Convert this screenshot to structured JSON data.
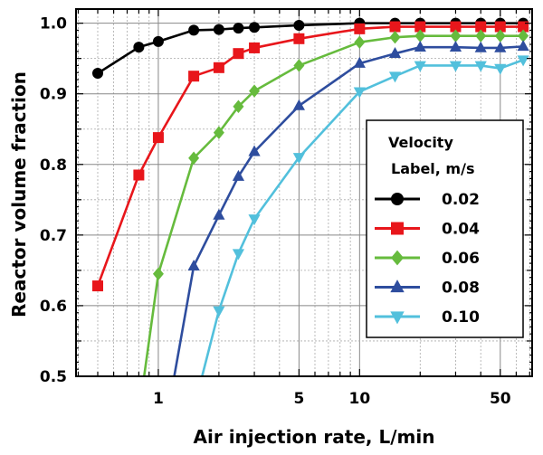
{
  "chart_data": {
    "type": "line",
    "xlabel": "Air injection rate, L/min",
    "ylabel": "Reactor volume fraction",
    "xscale": "log",
    "xlim": [
      0.39,
      72
    ],
    "ylim": [
      0.5,
      1.02
    ],
    "xticks": [
      {
        "value": 1,
        "label": "1"
      },
      {
        "value": 5,
        "label": "5"
      },
      {
        "value": 10,
        "label": "10"
      },
      {
        "value": 50,
        "label": "50"
      }
    ],
    "yticks": [
      {
        "value": 0.5,
        "label": "0.5"
      },
      {
        "value": 0.6,
        "label": "0.6"
      },
      {
        "value": 0.7,
        "label": "0.7"
      },
      {
        "value": 0.8,
        "label": "0.8"
      },
      {
        "value": 0.9,
        "label": "0.9"
      },
      {
        "value": 1.0,
        "label": "1.0"
      }
    ],
    "grid": true,
    "legend": {
      "title": "Velocity",
      "subtitle": "Label, m/s",
      "placement": "center-right"
    },
    "series": [
      {
        "name": "0.02",
        "color": "#000000",
        "marker": "circle",
        "x": [
          0.5,
          0.8,
          1.0,
          1.5,
          2.0,
          2.5,
          3.0,
          5.0,
          10.0,
          15.0,
          20.0,
          30.0,
          40.0,
          50.0,
          65.0
        ],
        "y": [
          0.929,
          0.966,
          0.974,
          0.99,
          0.991,
          0.993,
          0.994,
          0.997,
          1.0,
          1.0,
          1.0,
          1.0,
          1.0,
          1.0,
          1.0
        ]
      },
      {
        "name": "0.04",
        "color": "#e8161b",
        "marker": "square",
        "x": [
          0.5,
          0.8,
          1.0,
          1.5,
          2.0,
          2.5,
          3.0,
          5.0,
          10.0,
          15.0,
          20.0,
          30.0,
          40.0,
          50.0,
          65.0
        ],
        "y": [
          0.628,
          0.785,
          0.838,
          0.925,
          0.937,
          0.957,
          0.965,
          0.978,
          0.992,
          0.995,
          0.995,
          0.995,
          0.995,
          0.995,
          0.995
        ]
      },
      {
        "name": "0.06",
        "color": "#66bb3d",
        "marker": "diamond",
        "x": [
          0.85,
          1.0,
          1.5,
          2.0,
          2.5,
          3.0,
          5.0,
          10.0,
          15.0,
          20.0,
          30.0,
          40.0,
          50.0,
          65.0
        ],
        "y": [
          0.5,
          0.645,
          0.809,
          0.845,
          0.882,
          0.904,
          0.94,
          0.973,
          0.98,
          0.982,
          0.982,
          0.982,
          0.982,
          0.982
        ]
      },
      {
        "name": "0.08",
        "color": "#2e4d9e",
        "marker": "triangle-up",
        "x": [
          1.2,
          1.5,
          2.0,
          2.5,
          3.0,
          5.0,
          10.0,
          15.0,
          20.0,
          30.0,
          40.0,
          50.0,
          65.0
        ],
        "y": [
          0.5,
          0.656,
          0.728,
          0.783,
          0.818,
          0.883,
          0.943,
          0.957,
          0.966,
          0.966,
          0.965,
          0.965,
          0.967
        ]
      },
      {
        "name": "0.10",
        "color": "#52c0dc",
        "marker": "triangle-down",
        "x": [
          1.65,
          2.0,
          2.5,
          3.0,
          5.0,
          10.0,
          15.0,
          20.0,
          30.0,
          40.0,
          50.0,
          65.0
        ],
        "y": [
          0.5,
          0.593,
          0.674,
          0.723,
          0.81,
          0.903,
          0.925,
          0.94,
          0.94,
          0.94,
          0.936,
          0.948
        ]
      }
    ]
  }
}
